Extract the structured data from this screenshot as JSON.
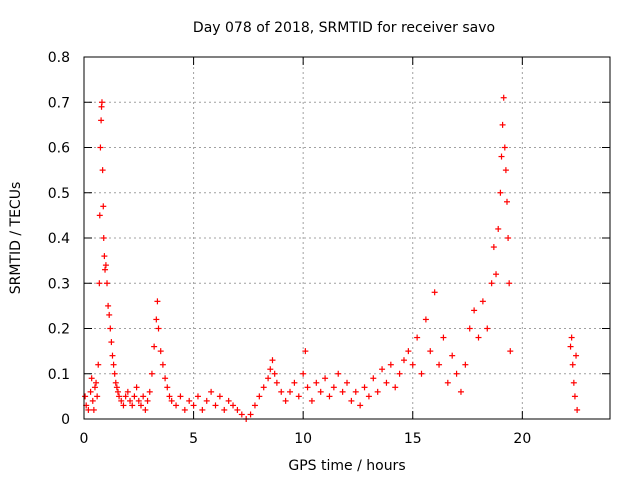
{
  "chart_data": {
    "type": "scatter",
    "title": "Day 078 of 2018, SRMTID for receiver savo",
    "xlabel": "GPS time / hours",
    "ylabel": "SRMTID / TECUs",
    "xlim": [
      0,
      24
    ],
    "ylim": [
      0,
      0.8
    ],
    "xticks": [
      0,
      5,
      10,
      15,
      20
    ],
    "yticks": [
      0,
      0.1,
      0.2,
      0.3,
      0.4,
      0.5,
      0.6,
      0.7,
      0.8
    ],
    "ytick_labels": [
      "0",
      "0.1",
      "0.2",
      "0.3",
      "0.4",
      "0.5",
      "0.6",
      "0.7",
      "0.8"
    ],
    "grid": true,
    "marker": "+",
    "color": "#ff0000",
    "series": [
      {
        "name": "SRMTID",
        "points": [
          [
            0.05,
            0.05
          ],
          [
            0.1,
            0.03
          ],
          [
            0.2,
            0.02
          ],
          [
            0.3,
            0.06
          ],
          [
            0.35,
            0.09
          ],
          [
            0.4,
            0.04
          ],
          [
            0.45,
            0.02
          ],
          [
            0.5,
            0.07
          ],
          [
            0.55,
            0.08
          ],
          [
            0.6,
            0.05
          ],
          [
            0.65,
            0.12
          ],
          [
            0.7,
            0.3
          ],
          [
            0.72,
            0.45
          ],
          [
            0.75,
            0.6
          ],
          [
            0.78,
            0.66
          ],
          [
            0.8,
            0.69
          ],
          [
            0.82,
            0.7
          ],
          [
            0.85,
            0.55
          ],
          [
            0.88,
            0.47
          ],
          [
            0.9,
            0.4
          ],
          [
            0.93,
            0.36
          ],
          [
            0.96,
            0.33
          ],
          [
            1.0,
            0.34
          ],
          [
            1.05,
            0.3
          ],
          [
            1.1,
            0.25
          ],
          [
            1.15,
            0.23
          ],
          [
            1.2,
            0.2
          ],
          [
            1.25,
            0.17
          ],
          [
            1.3,
            0.14
          ],
          [
            1.35,
            0.12
          ],
          [
            1.4,
            0.1
          ],
          [
            1.45,
            0.08
          ],
          [
            1.5,
            0.07
          ],
          [
            1.55,
            0.06
          ],
          [
            1.6,
            0.05
          ],
          [
            1.7,
            0.04
          ],
          [
            1.8,
            0.03
          ],
          [
            1.9,
            0.05
          ],
          [
            2.0,
            0.06
          ],
          [
            2.1,
            0.04
          ],
          [
            2.2,
            0.03
          ],
          [
            2.3,
            0.05
          ],
          [
            2.4,
            0.07
          ],
          [
            2.5,
            0.04
          ],
          [
            2.6,
            0.03
          ],
          [
            2.7,
            0.05
          ],
          [
            2.8,
            0.02
          ],
          [
            2.9,
            0.04
          ],
          [
            3.0,
            0.06
          ],
          [
            3.1,
            0.1
          ],
          [
            3.2,
            0.16
          ],
          [
            3.3,
            0.22
          ],
          [
            3.35,
            0.26
          ],
          [
            3.4,
            0.2
          ],
          [
            3.5,
            0.15
          ],
          [
            3.6,
            0.12
          ],
          [
            3.7,
            0.09
          ],
          [
            3.8,
            0.07
          ],
          [
            3.9,
            0.05
          ],
          [
            4.0,
            0.04
          ],
          [
            4.2,
            0.03
          ],
          [
            4.4,
            0.05
          ],
          [
            4.6,
            0.02
          ],
          [
            4.8,
            0.04
          ],
          [
            5.0,
            0.03
          ],
          [
            5.2,
            0.05
          ],
          [
            5.4,
            0.02
          ],
          [
            5.6,
            0.04
          ],
          [
            5.8,
            0.06
          ],
          [
            6.0,
            0.03
          ],
          [
            6.2,
            0.05
          ],
          [
            6.4,
            0.02
          ],
          [
            6.6,
            0.04
          ],
          [
            6.8,
            0.03
          ],
          [
            7.0,
            0.02
          ],
          [
            7.2,
            0.01
          ],
          [
            7.4,
            0.0
          ],
          [
            7.6,
            0.01
          ],
          [
            7.8,
            0.03
          ],
          [
            8.0,
            0.05
          ],
          [
            8.2,
            0.07
          ],
          [
            8.4,
            0.09
          ],
          [
            8.5,
            0.11
          ],
          [
            8.6,
            0.13
          ],
          [
            8.7,
            0.1
          ],
          [
            8.8,
            0.08
          ],
          [
            9.0,
            0.06
          ],
          [
            9.2,
            0.04
          ],
          [
            9.4,
            0.06
          ],
          [
            9.6,
            0.08
          ],
          [
            9.8,
            0.05
          ],
          [
            10.0,
            0.1
          ],
          [
            10.1,
            0.15
          ],
          [
            10.2,
            0.07
          ],
          [
            10.4,
            0.04
          ],
          [
            10.6,
            0.08
          ],
          [
            10.8,
            0.06
          ],
          [
            11.0,
            0.09
          ],
          [
            11.2,
            0.05
          ],
          [
            11.4,
            0.07
          ],
          [
            11.6,
            0.1
          ],
          [
            11.8,
            0.06
          ],
          [
            12.0,
            0.08
          ],
          [
            12.2,
            0.04
          ],
          [
            12.4,
            0.06
          ],
          [
            12.6,
            0.03
          ],
          [
            12.8,
            0.07
          ],
          [
            13.0,
            0.05
          ],
          [
            13.2,
            0.09
          ],
          [
            13.4,
            0.06
          ],
          [
            13.6,
            0.11
          ],
          [
            13.8,
            0.08
          ],
          [
            14.0,
            0.12
          ],
          [
            14.2,
            0.07
          ],
          [
            14.4,
            0.1
          ],
          [
            14.6,
            0.13
          ],
          [
            14.8,
            0.15
          ],
          [
            15.0,
            0.12
          ],
          [
            15.2,
            0.18
          ],
          [
            15.4,
            0.1
          ],
          [
            15.6,
            0.22
          ],
          [
            15.8,
            0.15
          ],
          [
            16.0,
            0.28
          ],
          [
            16.2,
            0.12
          ],
          [
            16.4,
            0.18
          ],
          [
            16.6,
            0.08
          ],
          [
            16.8,
            0.14
          ],
          [
            17.0,
            0.1
          ],
          [
            17.2,
            0.06
          ],
          [
            17.4,
            0.12
          ],
          [
            17.6,
            0.2
          ],
          [
            17.8,
            0.24
          ],
          [
            18.0,
            0.18
          ],
          [
            18.2,
            0.26
          ],
          [
            18.4,
            0.2
          ],
          [
            18.6,
            0.3
          ],
          [
            18.7,
            0.38
          ],
          [
            18.8,
            0.32
          ],
          [
            18.9,
            0.42
          ],
          [
            19.0,
            0.5
          ],
          [
            19.05,
            0.58
          ],
          [
            19.1,
            0.65
          ],
          [
            19.15,
            0.71
          ],
          [
            19.2,
            0.6
          ],
          [
            19.25,
            0.55
          ],
          [
            19.3,
            0.48
          ],
          [
            19.35,
            0.4
          ],
          [
            19.4,
            0.3
          ],
          [
            19.45,
            0.15
          ],
          [
            22.2,
            0.16
          ],
          [
            22.25,
            0.18
          ],
          [
            22.3,
            0.12
          ],
          [
            22.35,
            0.08
          ],
          [
            22.4,
            0.05
          ],
          [
            22.45,
            0.14
          ],
          [
            22.5,
            0.02
          ]
        ]
      }
    ]
  }
}
